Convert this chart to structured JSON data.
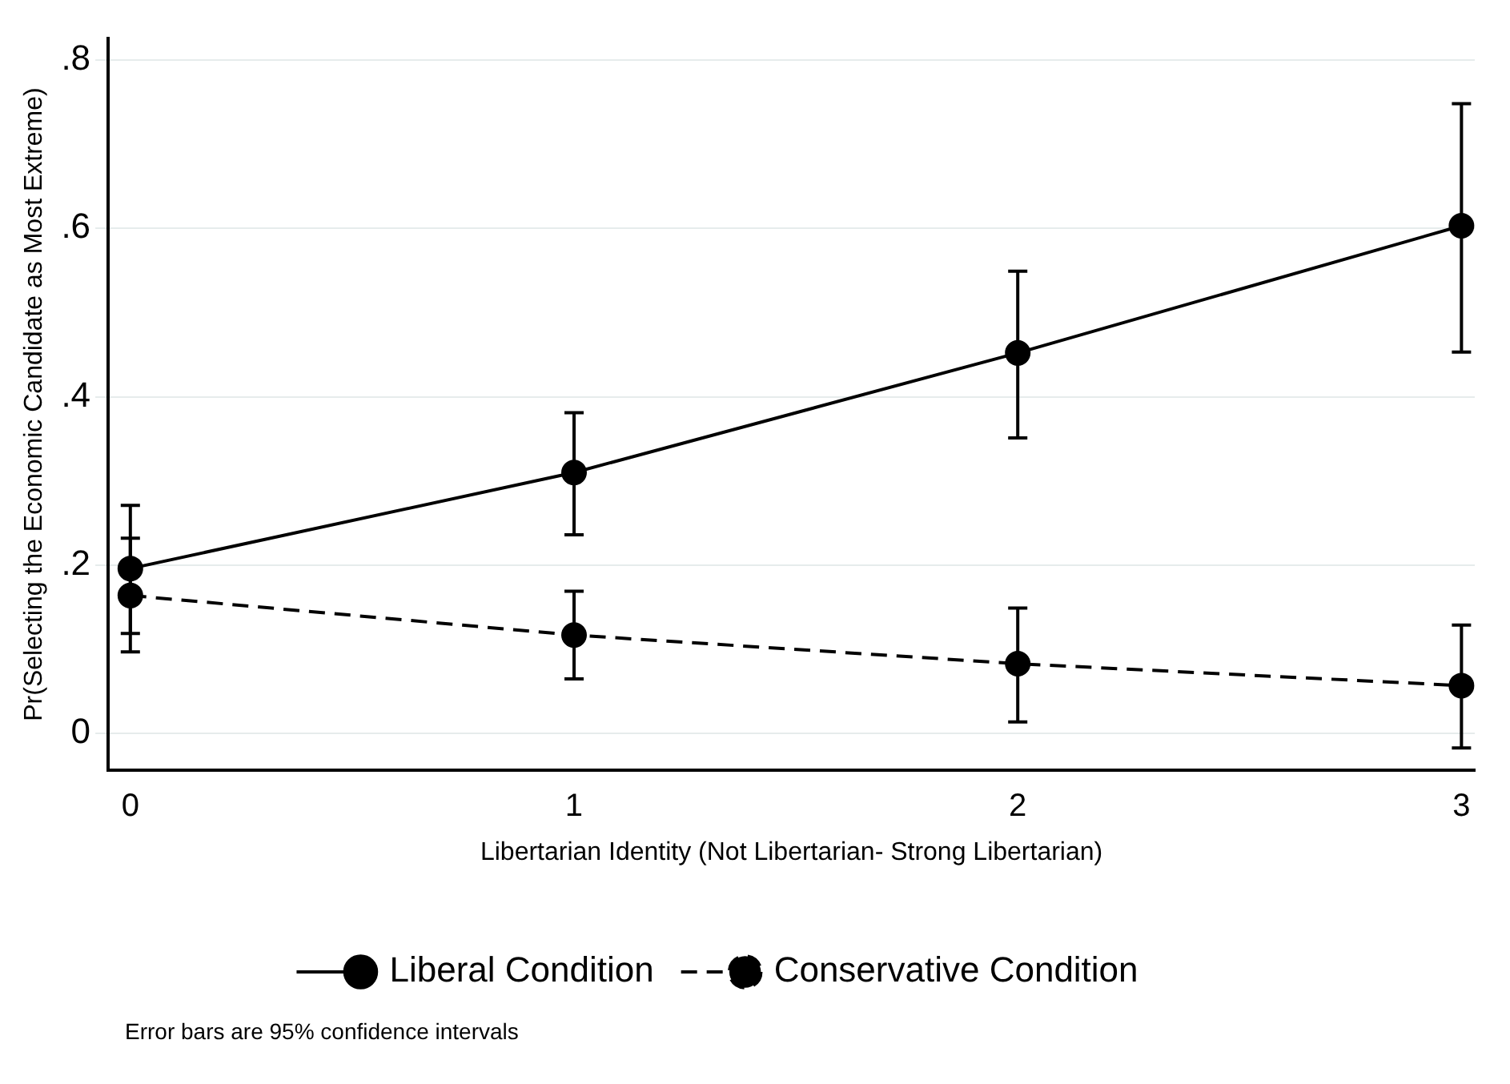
{
  "chart_data": {
    "type": "line",
    "xlabel": "Libertarian Identity (Not Libertarian- Strong Libertarian)",
    "ylabel": "Pr(Selecting the Economic Candidate as Most Extreme)",
    "x": [
      0,
      1,
      2,
      3
    ],
    "series": [
      {
        "name": "Liberal Condition",
        "color": "#000000",
        "line_style": "solid",
        "values": [
          0.196,
          0.31,
          0.452,
          0.603
        ],
        "errors": [
          [
            0.119,
            0.271
          ],
          [
            0.236,
            0.381
          ],
          [
            0.351,
            0.549
          ],
          [
            0.453,
            0.748
          ]
        ]
      },
      {
        "name": "Conservative Condition",
        "color": "#000000",
        "line_style": "dashed",
        "values": [
          0.164,
          0.117,
          0.083,
          0.057
        ],
        "errors": [
          [
            0.097,
            0.232
          ],
          [
            0.065,
            0.169
          ],
          [
            0.014,
            0.149
          ],
          [
            -0.017,
            0.129
          ]
        ]
      }
    ],
    "xlim": [
      -0.05,
      3.03
    ],
    "ylim": [
      -0.043,
      0.825
    ],
    "xticks": [
      0,
      1,
      2,
      3
    ],
    "yticks": [
      {
        "value": 0,
        "label": "0"
      },
      {
        "value": 0.2,
        "label": ".2"
      },
      {
        "value": 0.4,
        "label": ".4"
      },
      {
        "value": 0.6,
        "label": ".6"
      },
      {
        "value": 0.8,
        "label": ".8"
      }
    ],
    "grid": "y",
    "legend": "bottom",
    "marker": "circle",
    "annotations": [
      "Error bars are 95% confidence intervals"
    ]
  }
}
